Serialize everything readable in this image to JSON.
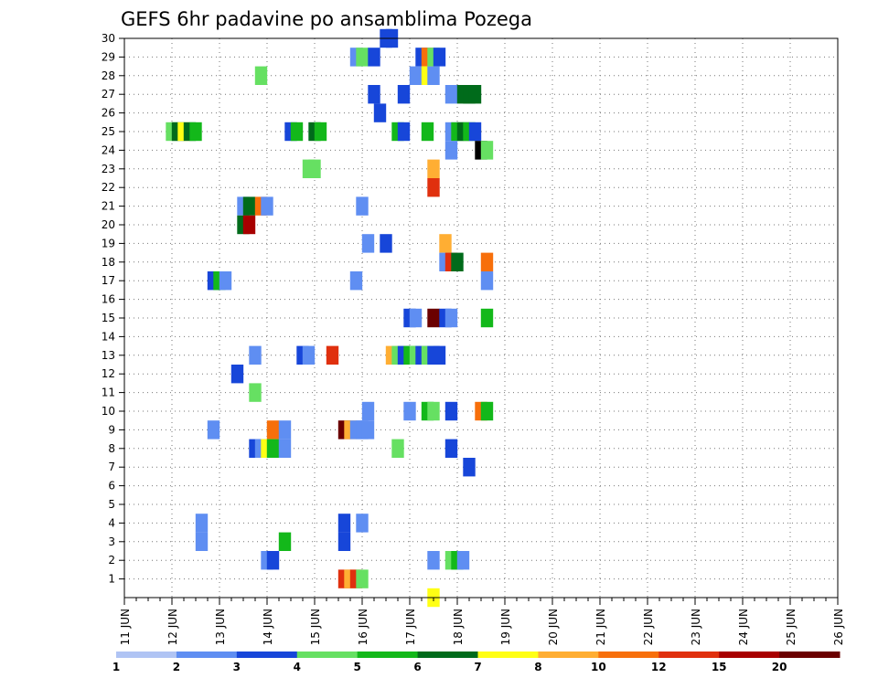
{
  "chart_data": {
    "type": "heatmap",
    "title": "GEFS 6hr padavine po ansamblima Pozega",
    "xlabel": "",
    "ylabel": "",
    "x_ticks": [
      "11 JUN",
      "12 JUN",
      "13 JUN",
      "14 JUN",
      "15 JUN",
      "16 JUN",
      "17 JUN",
      "18 JUN",
      "19 JUN",
      "20 JUN",
      "21 JUN",
      "22 JUN",
      "23 JUN",
      "24 JUN",
      "25 JUN",
      "26 JUN"
    ],
    "y_ticks": [
      "1",
      "2",
      "3",
      "4",
      "5",
      "6",
      "7",
      "8",
      "9",
      "10",
      "11",
      "12",
      "13",
      "14",
      "15",
      "16",
      "17",
      "18",
      "19",
      "20",
      "21",
      "22",
      "23",
      "24",
      "25",
      "26",
      "27",
      "28",
      "29",
      "30"
    ],
    "xlim": [
      0,
      60
    ],
    "ylim": [
      0,
      30
    ],
    "steps_per_day": 4,
    "grid": true,
    "colorbar": {
      "labels": [
        "1",
        "2",
        "3",
        "4",
        "5",
        "6",
        "7",
        "8",
        "10",
        "12",
        "15",
        "20"
      ],
      "colors": [
        "#b0c4f4",
        "#5f8ef2",
        "#1746d9",
        "#66e062",
        "#13b81a",
        "#006b1b",
        "#ffff14",
        "#ffae33",
        "#f76f0b",
        "#e0300e",
        "#a80000",
        "#6b0000"
      ]
    },
    "cells": [
      [
        22,
        30,
        2
      ],
      [
        22.5,
        30,
        2
      ],
      [
        19.5,
        29,
        1
      ],
      [
        20,
        29,
        3
      ],
      [
        21,
        29,
        2
      ],
      [
        25,
        29,
        2
      ],
      [
        25.5,
        29,
        8
      ],
      [
        26,
        29,
        3
      ],
      [
        26.5,
        29,
        2
      ],
      [
        11.5,
        28,
        3
      ],
      [
        24.5,
        28,
        1
      ],
      [
        25.5,
        28,
        6
      ],
      [
        26,
        28,
        1
      ],
      [
        21,
        27,
        2
      ],
      [
        23.5,
        27,
        2
      ],
      [
        27.5,
        27,
        1
      ],
      [
        28.5,
        27,
        5
      ],
      [
        29,
        27,
        5
      ],
      [
        29.5,
        27,
        5
      ],
      [
        21.5,
        26,
        2
      ],
      [
        4,
        25,
        3
      ],
      [
        4.5,
        25,
        5
      ],
      [
        5,
        25,
        6
      ],
      [
        5.5,
        25,
        5
      ],
      [
        6,
        25,
        4
      ],
      [
        14,
        25,
        2
      ],
      [
        14.5,
        25,
        4
      ],
      [
        16,
        25,
        5
      ],
      [
        16.5,
        25,
        4
      ],
      [
        23,
        25,
        4
      ],
      [
        23.5,
        25,
        2
      ],
      [
        25.5,
        25,
        4
      ],
      [
        27.5,
        25,
        1
      ],
      [
        28,
        25,
        4
      ],
      [
        28.5,
        25,
        5
      ],
      [
        29,
        25,
        4
      ],
      [
        29.5,
        25,
        2
      ],
      [
        27.5,
        24,
        1
      ],
      [
        30,
        24,
        12
      ],
      [
        30.5,
        24,
        3
      ],
      [
        15.5,
        23,
        3
      ],
      [
        16,
        23,
        3
      ],
      [
        26,
        23,
        7
      ],
      [
        26,
        22,
        9
      ],
      [
        10,
        21,
        1
      ],
      [
        10.5,
        21,
        5
      ],
      [
        11.5,
        21,
        8
      ],
      [
        12,
        21,
        1
      ],
      [
        20,
        21,
        1
      ],
      [
        10,
        20,
        5
      ],
      [
        10.5,
        20,
        10
      ],
      [
        20.5,
        19,
        1
      ],
      [
        22,
        19,
        2
      ],
      [
        27,
        19,
        7
      ],
      [
        27,
        18,
        1
      ],
      [
        27.5,
        18,
        9
      ],
      [
        28,
        18,
        5
      ],
      [
        30.5,
        18,
        8
      ],
      [
        7.5,
        17,
        2
      ],
      [
        8,
        17,
        4
      ],
      [
        8.5,
        17,
        1
      ],
      [
        19.5,
        17,
        1
      ],
      [
        30.5,
        17,
        1
      ],
      [
        24,
        15,
        2
      ],
      [
        24.5,
        15,
        1
      ],
      [
        26,
        15,
        11
      ],
      [
        27,
        15,
        2
      ],
      [
        27.5,
        15,
        1
      ],
      [
        30.5,
        15,
        4
      ],
      [
        11,
        13,
        1
      ],
      [
        15,
        13,
        2
      ],
      [
        15.5,
        13,
        1
      ],
      [
        17.5,
        13,
        9
      ],
      [
        22.5,
        13,
        7
      ],
      [
        23,
        13,
        3
      ],
      [
        23.5,
        13,
        2
      ],
      [
        24,
        13,
        4
      ],
      [
        24.5,
        13,
        3
      ],
      [
        25,
        13,
        2
      ],
      [
        25.5,
        13,
        3
      ],
      [
        26,
        13,
        2
      ],
      [
        26.5,
        13,
        2
      ],
      [
        9.5,
        12,
        2
      ],
      [
        11,
        11,
        3
      ],
      [
        20.5,
        10,
        1
      ],
      [
        24,
        10,
        1
      ],
      [
        25.5,
        10,
        4
      ],
      [
        26,
        10,
        3
      ],
      [
        27.5,
        10,
        2
      ],
      [
        30,
        10,
        8
      ],
      [
        30.5,
        10,
        4
      ],
      [
        7.5,
        9,
        1
      ],
      [
        12.5,
        9,
        8
      ],
      [
        13.5,
        9,
        1
      ],
      [
        18.5,
        9,
        11
      ],
      [
        19,
        9,
        7
      ],
      [
        19.5,
        9,
        1
      ],
      [
        20,
        9,
        1
      ],
      [
        20.5,
        9,
        1
      ],
      [
        11,
        8,
        2
      ],
      [
        11.5,
        8,
        1
      ],
      [
        12,
        8,
        6
      ],
      [
        12.5,
        8,
        4
      ],
      [
        13.5,
        8,
        1
      ],
      [
        23,
        8,
        3
      ],
      [
        27.5,
        8,
        2
      ],
      [
        29,
        7,
        2
      ],
      [
        6.5,
        4,
        1
      ],
      [
        18.5,
        4,
        2
      ],
      [
        20,
        4,
        1
      ],
      [
        6.5,
        3,
        1
      ],
      [
        13.5,
        3,
        4
      ],
      [
        18.5,
        3,
        2
      ],
      [
        12,
        2,
        1
      ],
      [
        12.5,
        2,
        2
      ],
      [
        26,
        2,
        1
      ],
      [
        27.5,
        2,
        3
      ],
      [
        28,
        2,
        4
      ],
      [
        28.5,
        2,
        1
      ],
      [
        18.5,
        1,
        9
      ],
      [
        19,
        1,
        7
      ],
      [
        19.5,
        1,
        9
      ],
      [
        20,
        1,
        3
      ],
      [
        26,
        0,
        6
      ]
    ]
  }
}
